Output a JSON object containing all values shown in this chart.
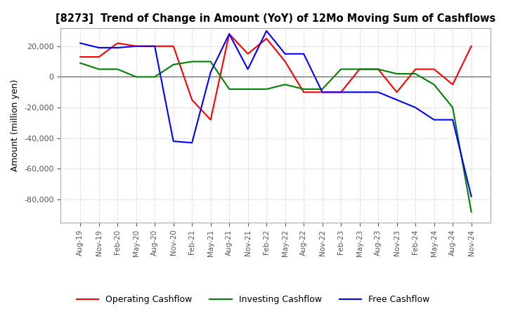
{
  "title": "[8273]  Trend of Change in Amount (YoY) of 12Mo Moving Sum of Cashflows",
  "ylabel": "Amount (million yen)",
  "ylim": [
    -95000,
    32000
  ],
  "yticks": [
    20000,
    0,
    -20000,
    -40000,
    -60000,
    -80000
  ],
  "background_color": "#ffffff",
  "grid_color": "#aaaaaa",
  "x_labels": [
    "Aug-19",
    "Nov-19",
    "Feb-20",
    "May-20",
    "Aug-20",
    "Nov-20",
    "Feb-21",
    "May-21",
    "Aug-21",
    "Nov-21",
    "Feb-22",
    "May-22",
    "Aug-22",
    "Nov-22",
    "Feb-23",
    "May-23",
    "Aug-23",
    "Nov-23",
    "Feb-24",
    "May-24",
    "Aug-24",
    "Nov-24"
  ],
  "operating": [
    13000,
    13000,
    22000,
    20000,
    20000,
    20000,
    -15000,
    -28000,
    28000,
    15000,
    25000,
    10000,
    -10000,
    -10000,
    -10000,
    5000,
    5000,
    -10000,
    5000,
    5000,
    -5000,
    20000
  ],
  "investing": [
    9000,
    5000,
    5000,
    0,
    0,
    8000,
    10000,
    10000,
    -8000,
    -8000,
    -8000,
    -5000,
    -8000,
    -8000,
    5000,
    5000,
    5000,
    2000,
    2000,
    -5000,
    -20000,
    -88000
  ],
  "free": [
    22000,
    19000,
    19000,
    20000,
    20000,
    -42000,
    -43000,
    3000,
    28000,
    5000,
    30000,
    15000,
    15000,
    -10000,
    -10000,
    -10000,
    -10000,
    -15000,
    -20000,
    -28000,
    -28000,
    -78000
  ],
  "op_color": "#ff0000",
  "inv_color": "#008000",
  "free_color": "#0000ff",
  "line_width": 1.5
}
